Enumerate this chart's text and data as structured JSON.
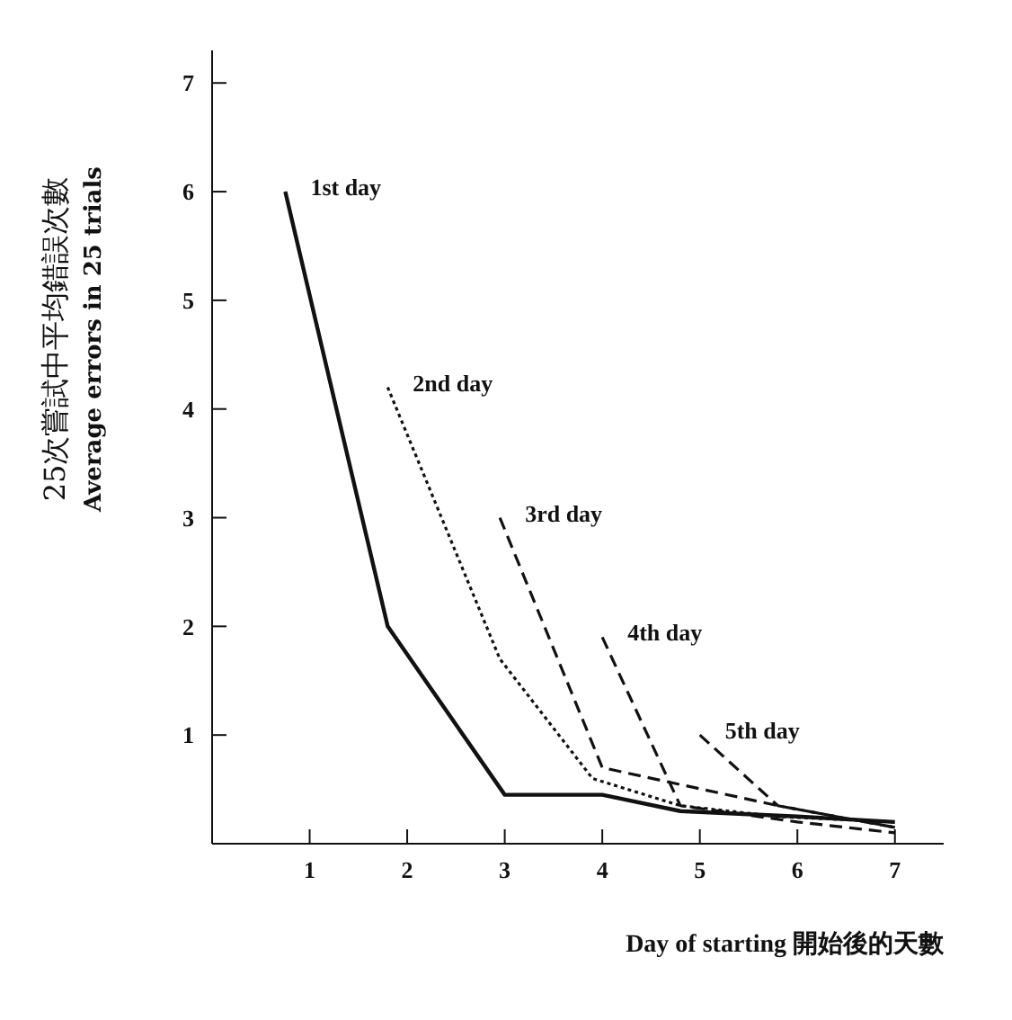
{
  "chart_data": {
    "type": "line",
    "xlabel": "Day of starting 開始後的天數",
    "ylabel": "25次嘗試中平均錯誤次數\nAverage errors in 25 trials",
    "xlim": [
      0,
      7.5
    ],
    "ylim": [
      0,
      7.3
    ],
    "xticks": [
      1,
      2,
      3,
      4,
      5,
      6,
      7
    ],
    "yticks": [
      1,
      2,
      3,
      4,
      5,
      6,
      7
    ],
    "grid": false,
    "legend": false,
    "marker": "none",
    "series": [
      {
        "name": "1st day",
        "color": "#111111",
        "line_style": "solid",
        "x": [
          0.75,
          1.8,
          3,
          4,
          4.8,
          6,
          7
        ],
        "values": [
          6,
          2,
          0.45,
          0.45,
          0.3,
          0.25,
          0.2
        ]
      },
      {
        "name": "2nd day",
        "color": "#111111",
        "line_style": "dotted",
        "x": [
          1.8,
          2.95,
          3.9,
          4.8,
          5.8,
          7
        ],
        "values": [
          4.2,
          1.7,
          0.6,
          0.35,
          0.25,
          0.2
        ]
      },
      {
        "name": "3rd day",
        "color": "#111111",
        "line_style": "dashed",
        "x": [
          2.95,
          4,
          5.8,
          7
        ],
        "values": [
          3,
          0.7,
          0.35,
          0.15
        ]
      },
      {
        "name": "4th day",
        "color": "#111111",
        "line_style": "dashed",
        "x": [
          4,
          4.8,
          6,
          7
        ],
        "values": [
          1.9,
          0.35,
          0.2,
          0.1
        ]
      },
      {
        "name": "5th day",
        "color": "#111111",
        "line_style": "dashed",
        "x": [
          5,
          5.8,
          7
        ],
        "values": [
          1,
          0.35,
          0.15
        ]
      }
    ]
  }
}
